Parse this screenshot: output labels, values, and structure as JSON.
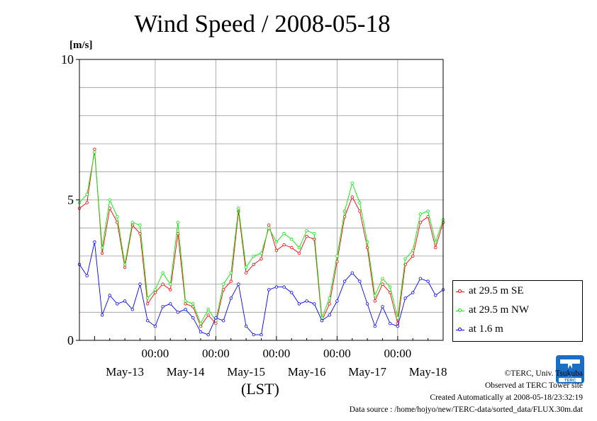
{
  "chart_data": {
    "type": "line",
    "title": "Wind Speed / 2008-05-18",
    "ylabel": "[m/s]",
    "xlabel": "(LST)",
    "ylim": [
      0,
      10
    ],
    "yticks": [
      "0",
      "5",
      "10"
    ],
    "x_time_labels": [
      "00:00",
      "00:00",
      "00:00",
      "00:00",
      "00:00"
    ],
    "x_date_labels": [
      "May-13",
      "May-14",
      "May-15",
      "May-16",
      "May-17",
      "May-18"
    ],
    "x_hours_range": [
      -6,
      138
    ],
    "legend_position": "right",
    "grid": true,
    "series": [
      {
        "name": "at 29.5 m SE",
        "color": "#ff0000",
        "x": [
          -6,
          -3,
          0,
          3,
          6,
          9,
          12,
          15,
          18,
          21,
          24,
          27,
          30,
          33,
          36,
          39,
          42,
          45,
          48,
          51,
          54,
          57,
          60,
          63,
          66,
          69,
          72,
          75,
          78,
          81,
          84,
          87,
          90,
          93,
          96,
          99,
          102,
          105,
          108,
          111,
          114,
          117,
          120,
          123,
          126,
          129,
          132,
          135,
          138
        ],
        "values": [
          4.7,
          4.9,
          6.8,
          3.1,
          4.7,
          4.2,
          2.6,
          4.1,
          3.8,
          1.3,
          1.7,
          2.0,
          1.8,
          3.8,
          1.3,
          1.2,
          0.5,
          0.9,
          0.6,
          1.8,
          2.1,
          4.6,
          2.4,
          2.7,
          2.9,
          4.1,
          3.2,
          3.4,
          3.3,
          3.1,
          3.7,
          3.6,
          0.7,
          1.3,
          2.8,
          4.4,
          5.1,
          4.6,
          3.3,
          1.4,
          2.0,
          1.7,
          0.6,
          2.7,
          3.0,
          4.2,
          4.4,
          3.3,
          4.2
        ]
      },
      {
        "name": "at 29.5 m NW",
        "color": "#00ee00",
        "x": [
          -6,
          -3,
          0,
          3,
          6,
          9,
          12,
          15,
          18,
          21,
          24,
          27,
          30,
          33,
          36,
          39,
          42,
          45,
          48,
          51,
          54,
          57,
          60,
          63,
          66,
          69,
          72,
          75,
          78,
          81,
          84,
          87,
          90,
          93,
          96,
          99,
          102,
          105,
          108,
          111,
          114,
          117,
          120,
          123,
          126,
          129,
          132,
          135,
          138
        ],
        "values": [
          4.9,
          5.2,
          6.7,
          3.3,
          5.0,
          4.4,
          2.7,
          4.2,
          4.1,
          1.5,
          1.8,
          2.4,
          2.0,
          4.2,
          1.4,
          1.3,
          0.6,
          1.1,
          0.7,
          2.0,
          2.4,
          4.7,
          2.6,
          3.0,
          3.1,
          4.0,
          3.5,
          3.8,
          3.6,
          3.3,
          3.9,
          3.8,
          0.8,
          1.5,
          3.0,
          4.6,
          5.6,
          4.9,
          3.5,
          1.6,
          2.2,
          1.9,
          0.8,
          2.9,
          3.2,
          4.5,
          4.6,
          3.5,
          4.3
        ]
      },
      {
        "name": "at 1.6 m",
        "color": "#0000ff",
        "x": [
          -6,
          -3,
          0,
          3,
          6,
          9,
          12,
          15,
          18,
          21,
          24,
          27,
          30,
          33,
          36,
          39,
          42,
          45,
          48,
          51,
          54,
          57,
          60,
          63,
          66,
          69,
          72,
          75,
          78,
          81,
          84,
          87,
          90,
          93,
          96,
          99,
          102,
          105,
          108,
          111,
          114,
          117,
          120,
          123,
          126,
          129,
          132,
          135,
          138
        ],
        "values": [
          2.7,
          2.3,
          3.5,
          0.9,
          1.6,
          1.3,
          1.4,
          1.1,
          2.0,
          0.7,
          0.5,
          1.2,
          1.3,
          1.0,
          1.1,
          0.8,
          0.3,
          0.2,
          0.8,
          0.7,
          1.5,
          2.0,
          0.5,
          0.2,
          0.2,
          1.8,
          1.9,
          1.9,
          1.7,
          1.3,
          1.4,
          1.3,
          0.7,
          0.9,
          1.4,
          2.1,
          2.4,
          2.1,
          1.3,
          0.5,
          1.2,
          0.6,
          0.5,
          1.5,
          1.7,
          2.2,
          2.1,
          1.6,
          1.8
        ]
      }
    ]
  },
  "credits": {
    "copyright": "©TERC, Univ. Tsukuba",
    "observed": "Observed at TERC Tower site",
    "created": "Created Automatically at 2008-05-18/23:32:19",
    "source": "Data source : /home/hojyo/new/TERC-data/sorted_data/FLUX.30m.dat"
  },
  "logo": {
    "text": "TERC"
  }
}
